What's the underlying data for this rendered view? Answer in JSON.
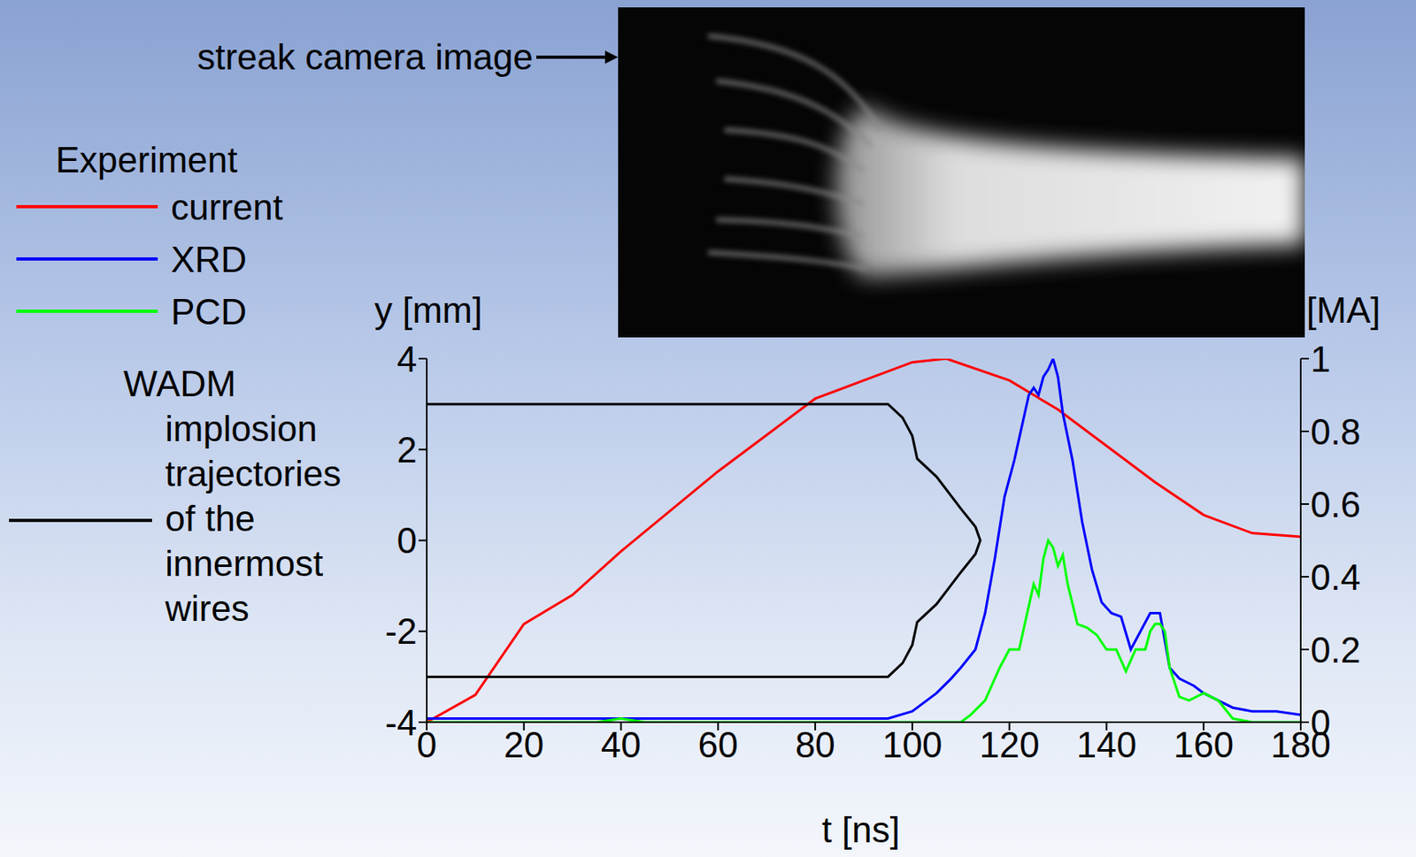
{
  "chart_data": {
    "type": "line",
    "annotation": "streak camera image",
    "legend_title": "Experiment",
    "legend": "left",
    "xlabel": "t [ns]",
    "ylabel": "y [mm]",
    "y2label": "[MA]",
    "xlim": [
      0,
      180
    ],
    "xticks": [
      0,
      20,
      40,
      60,
      80,
      100,
      120,
      140,
      160,
      180
    ],
    "ylim": [
      -4,
      4
    ],
    "yticks": [
      -4,
      -2,
      0,
      2,
      4
    ],
    "y2lim": [
      0,
      1
    ],
    "y2ticks": [
      0,
      0.2,
      0.4,
      0.6,
      0.8,
      1
    ],
    "series": [
      {
        "name": "current",
        "color": "#ff0000",
        "axis": "y2",
        "x": [
          0,
          10,
          20,
          30,
          40,
          50,
          60,
          70,
          80,
          90,
          100,
          107,
          120,
          130,
          140,
          150,
          160,
          170,
          180
        ],
        "values": [
          0,
          0.075,
          0.27,
          0.35,
          0.47,
          0.58,
          0.69,
          0.79,
          0.89,
          0.94,
          0.99,
          1.0,
          0.94,
          0.86,
          0.76,
          0.66,
          0.57,
          0.52,
          0.51
        ]
      },
      {
        "name": "XRD",
        "color": "#0000ff",
        "axis": "y2",
        "x": [
          0,
          20,
          40,
          60,
          80,
          95,
          100,
          105,
          108,
          110,
          113,
          115,
          117,
          119,
          121,
          122,
          124,
          125,
          126,
          127,
          128,
          129,
          130,
          131,
          133,
          135,
          137,
          139,
          141,
          143,
          145,
          147,
          149,
          151,
          153,
          155,
          158,
          160,
          163,
          166,
          170,
          175,
          180
        ],
        "values": [
          0.01,
          0.01,
          0.01,
          0.01,
          0.01,
          0.01,
          0.03,
          0.08,
          0.12,
          0.15,
          0.2,
          0.3,
          0.45,
          0.62,
          0.72,
          0.78,
          0.9,
          0.92,
          0.9,
          0.95,
          0.97,
          1.0,
          0.95,
          0.85,
          0.72,
          0.55,
          0.42,
          0.33,
          0.3,
          0.29,
          0.2,
          0.25,
          0.3,
          0.3,
          0.15,
          0.12,
          0.1,
          0.08,
          0.06,
          0.04,
          0.03,
          0.03,
          0.02
        ]
      },
      {
        "name": "PCD",
        "color": "#00ff00",
        "axis": "y2",
        "x": [
          0,
          35,
          40,
          45,
          100,
          110,
          112,
          115,
          118,
          120,
          122,
          124,
          125,
          126,
          127,
          128,
          129,
          130,
          131,
          132,
          134,
          136,
          138,
          140,
          142,
          144,
          146,
          148,
          149,
          150,
          151,
          152,
          153,
          155,
          157,
          160,
          163,
          166,
          170,
          180
        ],
        "values": [
          0,
          0,
          0.01,
          0,
          0,
          0,
          0.02,
          0.06,
          0.15,
          0.2,
          0.2,
          0.32,
          0.38,
          0.35,
          0.45,
          0.5,
          0.48,
          0.43,
          0.46,
          0.38,
          0.27,
          0.26,
          0.24,
          0.2,
          0.2,
          0.14,
          0.2,
          0.2,
          0.25,
          0.27,
          0.27,
          0.25,
          0.15,
          0.07,
          0.06,
          0.08,
          0.06,
          0.01,
          0,
          0
        ]
      },
      {
        "name": "WADM implosion trajectories of the innermost wires",
        "color": "#000000",
        "axis": "y",
        "x": [
          0,
          95,
          98,
          100,
          101,
          105,
          110,
          113,
          114,
          113,
          110,
          105,
          101,
          100,
          98,
          95,
          0
        ],
        "values": [
          3,
          3,
          2.7,
          2.3,
          1.8,
          1.4,
          0.7,
          0.3,
          0,
          -0.3,
          -0.7,
          -1.4,
          -1.8,
          -2.3,
          -2.7,
          -3,
          -3
        ]
      }
    ]
  }
}
